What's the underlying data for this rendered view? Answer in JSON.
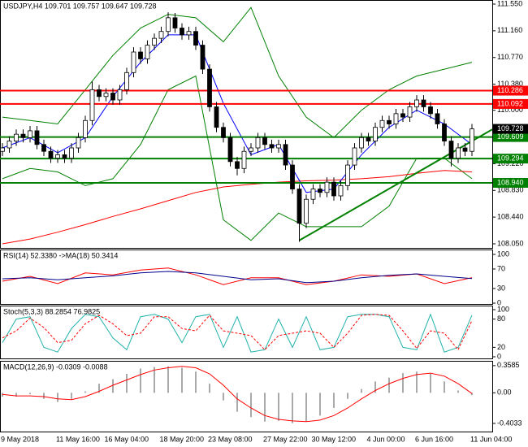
{
  "chart_data": [
    {
      "type": "candlestick",
      "title": "USDJPY,H4  109.701 109.757 109.647 109.728",
      "categories": [
        "9 May 2018",
        null,
        null,
        null,
        null,
        null,
        null,
        null,
        "11 May 16:00",
        null,
        null,
        null,
        null,
        null,
        null,
        "16 May 04:00",
        null,
        null,
        null,
        null,
        null,
        null,
        null,
        "18 May 20:00",
        null,
        null,
        null,
        null,
        null,
        null,
        "23 May 08:00",
        null,
        null,
        null,
        null,
        null,
        null,
        null,
        "27 May 22:00",
        null,
        null,
        null,
        null,
        null,
        null,
        "30 May 12:00",
        null,
        null,
        null,
        null,
        null,
        null,
        null,
        "4 Jun 00:00",
        null,
        null,
        null,
        null,
        null,
        null,
        "6 Jun 16:00",
        null,
        null,
        null,
        null,
        null,
        null,
        null,
        "11 Jun 04:00"
      ],
      "open": [
        109.4,
        109.45,
        109.55,
        109.65,
        109.6,
        109.7,
        109.5,
        109.4,
        109.3,
        109.35,
        109.3,
        109.45,
        109.6,
        109.85,
        110.3,
        110.2,
        110.25,
        110.15,
        110.3,
        110.55,
        110.85,
        110.75,
        110.95,
        111.05,
        111.15,
        111.35,
        111.2,
        111.1,
        111.15,
        110.95,
        110.6,
        110.05,
        109.75,
        109.6,
        109.25,
        109.15,
        109.4,
        109.45,
        109.6,
        109.5,
        109.45,
        109.5,
        109.2,
        108.85,
        108.35,
        108.7,
        108.85,
        108.8,
        108.95,
        108.75,
        108.9,
        109.2,
        109.45,
        109.6,
        109.55,
        109.75,
        109.85,
        109.8,
        109.95,
        109.9,
        110.05,
        110.15,
        110.05,
        109.95,
        109.8,
        109.55,
        109.3,
        109.45,
        109.4
      ],
      "high": [
        109.52,
        109.62,
        109.72,
        109.72,
        109.77,
        109.77,
        109.57,
        109.47,
        109.42,
        109.42,
        109.52,
        109.67,
        109.92,
        110.42,
        110.37,
        110.32,
        110.32,
        110.37,
        110.62,
        110.92,
        110.92,
        111.02,
        111.12,
        111.22,
        111.43,
        111.42,
        111.27,
        111.22,
        111.22,
        111.02,
        110.67,
        110.12,
        109.82,
        109.67,
        109.32,
        109.47,
        109.52,
        109.67,
        109.67,
        109.57,
        109.57,
        109.57,
        109.27,
        108.92,
        108.77,
        108.92,
        108.92,
        109.02,
        109.02,
        108.97,
        109.27,
        109.52,
        109.67,
        109.67,
        109.82,
        109.92,
        109.92,
        110.02,
        110.02,
        110.12,
        110.22,
        110.22,
        110.12,
        110.02,
        109.87,
        109.62,
        109.52,
        109.52,
        109.8
      ],
      "low": [
        109.33,
        109.38,
        109.48,
        109.53,
        109.53,
        109.43,
        109.33,
        109.23,
        109.23,
        109.23,
        109.23,
        109.38,
        109.53,
        109.78,
        110.13,
        110.13,
        110.08,
        110.08,
        110.23,
        110.48,
        110.68,
        110.68,
        110.88,
        110.98,
        111.08,
        111.13,
        111.03,
        111.03,
        110.88,
        110.53,
        109.98,
        109.68,
        109.53,
        109.18,
        109.05,
        109.08,
        109.33,
        109.38,
        109.43,
        109.38,
        109.38,
        109.13,
        108.78,
        108.08,
        108.28,
        108.63,
        108.73,
        108.73,
        108.68,
        108.68,
        108.83,
        109.13,
        109.38,
        109.48,
        109.48,
        109.68,
        109.73,
        109.73,
        109.83,
        109.83,
        109.98,
        109.98,
        109.88,
        109.73,
        109.48,
        109.18,
        109.23,
        109.33,
        109.33
      ],
      "close": [
        109.45,
        109.55,
        109.65,
        109.6,
        109.7,
        109.5,
        109.4,
        109.3,
        109.35,
        109.3,
        109.45,
        109.6,
        109.85,
        110.3,
        110.2,
        110.25,
        110.15,
        110.3,
        110.55,
        110.85,
        110.75,
        110.95,
        111.05,
        111.15,
        111.35,
        111.2,
        111.1,
        111.15,
        110.95,
        110.6,
        110.05,
        109.75,
        109.6,
        109.25,
        109.15,
        109.4,
        109.45,
        109.6,
        109.5,
        109.45,
        109.5,
        109.2,
        108.85,
        108.35,
        108.7,
        108.85,
        108.8,
        108.95,
        108.75,
        108.9,
        109.2,
        109.45,
        109.6,
        109.55,
        109.75,
        109.85,
        109.8,
        109.95,
        109.9,
        110.05,
        110.15,
        110.05,
        109.95,
        109.8,
        109.55,
        109.3,
        109.45,
        109.4,
        109.728
      ],
      "up_color": "#ffffff",
      "down_color": "#000000",
      "ylim": [
        108.05,
        111.55
      ],
      "yticks": [
        {
          "value": 108.05,
          "label": "108.050"
        },
        {
          "value": 108.44,
          "label": "108.440"
        },
        {
          "value": 108.83,
          "label": "108.830"
        },
        {
          "value": 109.22,
          "label": "109.220"
        },
        {
          "value": 109.61,
          "label": "109.610"
        },
        {
          "value": 110.0,
          "label": "110.000"
        },
        {
          "value": 110.38,
          "label": "110.380"
        },
        {
          "value": 110.77,
          "label": "110.770"
        },
        {
          "value": 111.16,
          "label": "111.160"
        },
        {
          "value": 111.55,
          "label": "111.550"
        }
      ],
      "overlay_x": [
        0,
        4,
        8,
        12,
        16,
        20,
        24,
        28,
        32,
        36,
        40,
        44,
        48,
        52,
        56,
        60,
        64,
        68
      ],
      "overlays": [
        {
          "color": "#008000",
          "values": [
            109.9,
            109.85,
            109.8,
            110.3,
            110.8,
            111.2,
            111.4,
            111.35,
            111.0,
            111.5,
            110.5,
            109.9,
            109.6,
            110.0,
            110.3,
            110.5,
            110.6,
            110.7
          ]
        },
        {
          "color": "#008000",
          "values": [
            109.0,
            109.15,
            109.1,
            108.9,
            109.0,
            109.5,
            110.3,
            110.5,
            108.4,
            108.1,
            108.5,
            108.3,
            108.3,
            108.3,
            108.6,
            109.3,
            109.3,
            109.0
          ]
        },
        {
          "color": "#ff0000",
          "values": [
            108.05,
            108.12,
            108.22,
            108.33,
            108.45,
            108.56,
            108.68,
            108.8,
            108.88,
            108.92,
            108.95,
            108.97,
            108.98,
            109.0,
            109.03,
            109.08,
            109.12,
            109.1
          ]
        },
        {
          "color": "#0000ff",
          "values": [
            109.45,
            109.6,
            109.38,
            109.6,
            110.2,
            110.7,
            111.1,
            111.1,
            110.1,
            109.35,
            109.5,
            108.8,
            108.85,
            109.35,
            109.75,
            110.0,
            109.8,
            109.5
          ]
        }
      ],
      "levels": [
        {
          "value": 110.286,
          "color": "#ff0000"
        },
        {
          "value": 110.092,
          "color": "#ff0000"
        },
        {
          "value": 109.609,
          "color": "#008000"
        },
        {
          "value": 109.294,
          "color": "#008000"
        },
        {
          "value": {
            "value": 108.94,
            "label": "108.940"
          },
          "color": "#008000"
        }
      ],
      "trendline": {
        "x": [
          43,
          68
        ],
        "values": [
          108.1,
          109.55
        ],
        "color": "#008000"
      },
      "last_price": 109.728
    },
    {
      "type": "line",
      "title": "RSI(14) 52.3380 ->MA(18) 50.3414",
      "x": [
        0,
        4,
        8,
        12,
        16,
        20,
        24,
        28,
        32,
        36,
        40,
        44,
        48,
        52,
        56,
        60,
        64,
        68
      ],
      "series": [
        {
          "color": "#ff0000",
          "values": [
            45,
            55,
            40,
            62,
            58,
            68,
            72,
            58,
            38,
            52,
            52,
            38,
            45,
            58,
            55,
            60,
            40,
            52.338
          ]
        },
        {
          "color": "#00008b",
          "values": [
            50,
            52,
            48,
            52,
            56,
            62,
            65,
            62,
            55,
            48,
            50,
            42,
            45,
            52,
            57,
            60,
            55,
            50.3414
          ]
        }
      ],
      "ylim": [
        0,
        100
      ],
      "yticks": [
        0,
        30,
        70,
        100
      ]
    },
    {
      "type": "line",
      "title": "Stoch(5,3,3) 88.2854 76.9825",
      "x": [
        0,
        2,
        4,
        6,
        8,
        10,
        12,
        14,
        16,
        18,
        20,
        22,
        24,
        26,
        28,
        30,
        32,
        34,
        36,
        38,
        40,
        42,
        44,
        46,
        48,
        50,
        52,
        54,
        56,
        58,
        60,
        62,
        64,
        66,
        68
      ],
      "series": [
        {
          "color": "#20b2aa",
          "values": [
            30,
            80,
            85,
            20,
            10,
            60,
            90,
            85,
            40,
            15,
            85,
            90,
            80,
            30,
            85,
            90,
            20,
            85,
            10,
            15,
            80,
            20,
            85,
            15,
            20,
            85,
            90,
            90,
            85,
            20,
            15,
            90,
            10,
            20,
            88.2854
          ]
        },
        {
          "color": "#ff0000",
          "dash": true,
          "values": [
            40,
            55,
            82,
            62,
            30,
            35,
            70,
            88,
            70,
            45,
            50,
            85,
            85,
            60,
            55,
            88,
            55,
            50,
            45,
            15,
            45,
            50,
            55,
            50,
            20,
            50,
            88,
            90,
            88,
            55,
            18,
            55,
            50,
            15,
            76.9825
          ]
        }
      ],
      "ylim": [
        0,
        100
      ],
      "yticks": [
        0,
        20,
        80,
        100
      ]
    },
    {
      "type": "macd",
      "title": "MACD(12,26,9) -0.0309 -0.0088",
      "x": [
        0,
        2,
        4,
        6,
        8,
        10,
        12,
        14,
        16,
        18,
        20,
        22,
        24,
        26,
        28,
        30,
        32,
        34,
        36,
        38,
        40,
        42,
        44,
        46,
        48,
        50,
        52,
        54,
        56,
        58,
        60,
        62,
        64,
        66,
        68
      ],
      "histogram": [
        -0.05,
        -0.05,
        -0.02,
        -0.08,
        -0.12,
        -0.08,
        0.02,
        0.12,
        0.18,
        0.25,
        0.32,
        0.34,
        0.35,
        0.33,
        0.28,
        0.12,
        -0.1,
        -0.25,
        -0.32,
        -0.38,
        -0.37,
        -0.4,
        -0.38,
        -0.3,
        -0.2,
        -0.08,
        0.05,
        0.15,
        0.2,
        0.26,
        0.28,
        0.25,
        0.15,
        0.03,
        -0.0309
      ],
      "signal": [
        -0.02,
        -0.04,
        -0.04,
        -0.05,
        -0.08,
        -0.09,
        -0.05,
        0.02,
        0.1,
        0.17,
        0.24,
        0.3,
        0.33,
        0.35,
        0.33,
        0.25,
        0.1,
        -0.08,
        -0.2,
        -0.3,
        -0.35,
        -0.37,
        -0.38,
        -0.36,
        -0.3,
        -0.2,
        -0.08,
        0.03,
        0.12,
        0.19,
        0.24,
        0.26,
        0.22,
        0.12,
        -0.0088
      ],
      "histogram_color": "#a9a9a9",
      "signal_color": "#ff0000",
      "ylim": [
        -0.5,
        0.4
      ],
      "yticks": [
        -0.4033,
        {
          "value": 0,
          "label": "0.00"
        },
        0.3585
      ]
    }
  ]
}
